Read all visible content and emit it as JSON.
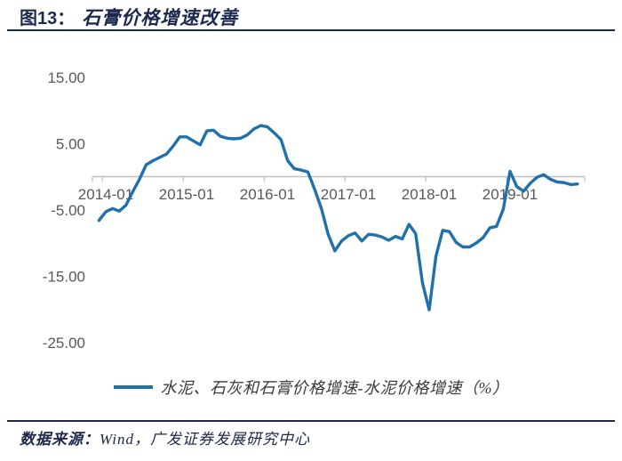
{
  "header": {
    "figure_label": "图13：",
    "title": "石膏价格增速改善"
  },
  "footer": {
    "source_label": "数据来源：",
    "source_text": "Wind，广发证券发展研究中心"
  },
  "colors": {
    "accent_navy": "#1B2A4E",
    "line_blue": "#2070AC",
    "axis_gray": "#BFBFBF",
    "label_gray": "#595959"
  },
  "chart_data": {
    "type": "line",
    "title": "石膏价格增速改善",
    "grid": false,
    "legend_position": "bottom",
    "axis_color": "#BFBFBF",
    "x_axis": {
      "tick_labels": [
        "2014-01",
        "2015-01",
        "2016-01",
        "2017-01",
        "2018-01",
        "2019-01"
      ]
    },
    "y_axis": {
      "tick_labels": [
        "15.00",
        "5.00",
        "-5.00",
        "-15.00",
        "-25.00"
      ],
      "tick_values": [
        15,
        5,
        -5,
        -15,
        -25
      ],
      "range_shown": [
        -25,
        15
      ]
    },
    "series": [
      {
        "name": "水泥、石灰和石膏价格增速-水泥价格增速（%）",
        "color": "#2070AC",
        "unit": "%",
        "x": [
          "2013-12",
          "2014-01",
          "2014-02",
          "2014-03",
          "2014-04",
          "2014-05",
          "2014-06",
          "2014-07",
          "2014-08",
          "2014-09",
          "2014-10",
          "2014-11",
          "2014-12",
          "2015-01",
          "2015-02",
          "2015-03",
          "2015-04",
          "2015-05",
          "2015-06",
          "2015-07",
          "2015-08",
          "2015-09",
          "2015-10",
          "2015-11",
          "2015-12",
          "2016-01",
          "2016-02",
          "2016-03",
          "2016-04",
          "2016-05",
          "2016-06",
          "2016-07",
          "2016-08",
          "2016-09",
          "2016-10",
          "2016-11",
          "2016-12",
          "2017-01",
          "2017-02",
          "2017-03",
          "2017-04",
          "2017-05",
          "2017-06",
          "2017-07",
          "2017-08",
          "2017-09",
          "2017-10",
          "2017-11",
          "2017-12",
          "2018-01",
          "2018-02",
          "2018-03",
          "2018-04",
          "2018-05",
          "2018-06",
          "2018-07",
          "2018-08",
          "2018-09",
          "2018-10",
          "2018-11",
          "2018-12",
          "2019-01",
          "2019-02",
          "2019-03",
          "2019-04",
          "2019-05",
          "2019-06",
          "2019-07",
          "2019-08",
          "2019-09",
          "2019-10",
          "2019-11"
        ],
        "values": [
          -6.6,
          -5.3,
          -4.8,
          -5.2,
          -4.3,
          -2.3,
          -0.4,
          1.8,
          2.4,
          2.9,
          3.4,
          4.6,
          6.0,
          6.0,
          5.4,
          4.8,
          6.9,
          7.0,
          6.1,
          5.8,
          5.7,
          5.8,
          6.3,
          7.2,
          7.7,
          7.5,
          6.6,
          5.6,
          2.4,
          1.2,
          1.0,
          0.7,
          -1.9,
          -4.8,
          -8.7,
          -11.2,
          -9.7,
          -8.9,
          -8.5,
          -9.7,
          -8.7,
          -8.8,
          -9.1,
          -9.6,
          -9.0,
          -9.4,
          -7.2,
          -8.6,
          -16.0,
          -20.1,
          -12.0,
          -8.1,
          -8.3,
          -9.9,
          -10.6,
          -10.6,
          -10.0,
          -9.2,
          -7.7,
          -7.5,
          -4.9,
          0.8,
          -1.5,
          -2.2,
          -1.0,
          -0.1,
          0.3,
          -0.4,
          -0.8,
          -0.9,
          -1.2,
          -1.1
        ]
      }
    ]
  }
}
